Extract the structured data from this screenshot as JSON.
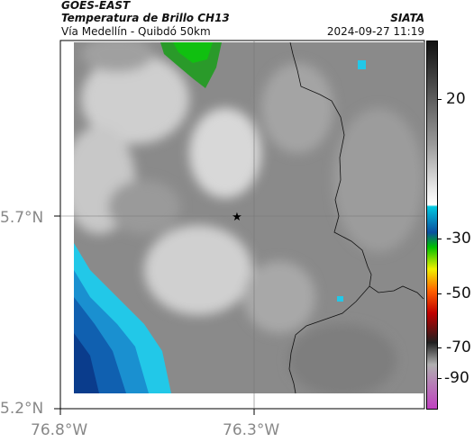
{
  "header": {
    "satellite": "GOES-EAST",
    "product": "Temperatura de Brillo CH13",
    "area": "Vía Medellín - Quibdó 50km",
    "org": "SIATA",
    "datetime": "2024-09-27 11:19"
  },
  "axes": {
    "lat_labels": [
      "5.7°N",
      "5.2°N"
    ],
    "lon_labels": [
      "76.8°W",
      "76.3°W"
    ]
  },
  "colorbar": {
    "ticks": [
      "20",
      "-30",
      "-50",
      "-70",
      "-90"
    ],
    "colors": [
      "#111111",
      "#555555",
      "#9a9a9a",
      "#e8e8e8",
      "#ffffff",
      "#00c8e0",
      "#0a50a0",
      "#00c000",
      "#f0f000",
      "#ff6000",
      "#c00000",
      "#202020",
      "#b0b0b0",
      "#c040c0"
    ]
  },
  "marker": {
    "symbol": "★",
    "name": "location-marker"
  }
}
